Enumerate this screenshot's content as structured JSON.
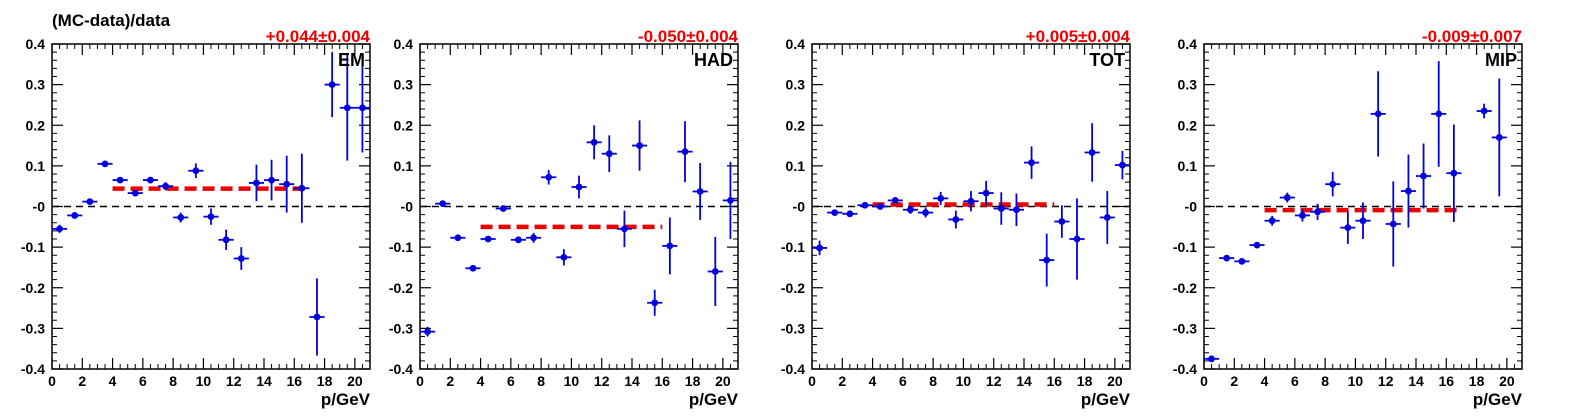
{
  "figure": {
    "ylabel": "(MC-data)/data",
    "xlabel": "p/GeV",
    "colors": {
      "points": "#0000dd",
      "fit": "#ee0000",
      "zero_line": "#000000",
      "axes": "#000000"
    }
  },
  "chart_data": [
    {
      "type": "scatter",
      "label": "EM",
      "fit_text": "+0.044±0.004",
      "fit": {
        "value": 0.044,
        "x_range": [
          4,
          17
        ]
      },
      "xlim": [
        0,
        21
      ],
      "ylim": [
        -0.4,
        0.4
      ],
      "xticks": [
        "0",
        "2",
        "4",
        "6",
        "8",
        "10",
        "12",
        "14",
        "16",
        "18",
        "20"
      ],
      "yticks": [
        "-0.4",
        "-0.3",
        "-0.2",
        "-0.1",
        "-0",
        "0.1",
        "0.2",
        "0.3",
        "0.4"
      ],
      "grid": false,
      "points": [
        {
          "x": 0.5,
          "y": -0.055,
          "err": 0.01
        },
        {
          "x": 1.5,
          "y": -0.022,
          "err": 0.006
        },
        {
          "x": 2.5,
          "y": 0.012,
          "err": 0.006
        },
        {
          "x": 3.5,
          "y": 0.105,
          "err": 0.005
        },
        {
          "x": 4.5,
          "y": 0.065,
          "err": 0.007
        },
        {
          "x": 5.5,
          "y": 0.033,
          "err": 0.008
        },
        {
          "x": 6.5,
          "y": 0.065,
          "err": 0.008
        },
        {
          "x": 7.5,
          "y": 0.05,
          "err": 0.01
        },
        {
          "x": 8.5,
          "y": -0.027,
          "err": 0.012
        },
        {
          "x": 9.5,
          "y": 0.088,
          "err": 0.018
        },
        {
          "x": 10.5,
          "y": -0.025,
          "err": 0.02
        },
        {
          "x": 11.5,
          "y": -0.082,
          "err": 0.025
        },
        {
          "x": 12.5,
          "y": -0.128,
          "err": 0.028
        },
        {
          "x": 13.5,
          "y": 0.058,
          "err": 0.045
        },
        {
          "x": 14.5,
          "y": 0.065,
          "err": 0.05
        },
        {
          "x": 15.5,
          "y": 0.055,
          "err": 0.07
        },
        {
          "x": 16.5,
          "y": 0.045,
          "err": 0.085
        },
        {
          "x": 17.5,
          "y": -0.272,
          "err": 0.095
        },
        {
          "x": 18.5,
          "y": 0.3,
          "err": 0.08
        },
        {
          "x": 19.5,
          "y": 0.243,
          "err": 0.13
        },
        {
          "x": 20.5,
          "y": 0.243,
          "err": 0.11
        }
      ]
    },
    {
      "type": "scatter",
      "label": "HAD",
      "fit_text": "-0.050±0.004",
      "fit": {
        "value": -0.05,
        "x_range": [
          4,
          16
        ]
      },
      "xlim": [
        0,
        21
      ],
      "ylim": [
        -0.4,
        0.4
      ],
      "xticks": [
        "0",
        "2",
        "4",
        "6",
        "8",
        "10",
        "12",
        "14",
        "16",
        "18",
        "20"
      ],
      "yticks": [
        "-0.4",
        "-0.3",
        "-0.2",
        "-0.1",
        "-0",
        "0.1",
        "0.2",
        "0.3",
        "0.4"
      ],
      "grid": false,
      "points": [
        {
          "x": 0.5,
          "y": -0.308,
          "err": 0.012
        },
        {
          "x": 1.5,
          "y": 0.007,
          "err": 0.005
        },
        {
          "x": 2.5,
          "y": -0.077,
          "err": 0.005
        },
        {
          "x": 3.5,
          "y": -0.152,
          "err": 0.005
        },
        {
          "x": 4.5,
          "y": -0.08,
          "err": 0.005
        },
        {
          "x": 5.5,
          "y": -0.005,
          "err": 0.006
        },
        {
          "x": 6.5,
          "y": -0.082,
          "err": 0.008
        },
        {
          "x": 7.5,
          "y": -0.077,
          "err": 0.012
        },
        {
          "x": 8.5,
          "y": 0.072,
          "err": 0.018
        },
        {
          "x": 9.5,
          "y": -0.125,
          "err": 0.02
        },
        {
          "x": 10.5,
          "y": 0.048,
          "err": 0.028
        },
        {
          "x": 11.5,
          "y": 0.158,
          "err": 0.042
        },
        {
          "x": 12.5,
          "y": 0.13,
          "err": 0.045
        },
        {
          "x": 13.5,
          "y": -0.055,
          "err": 0.045
        },
        {
          "x": 14.5,
          "y": 0.15,
          "err": 0.062
        },
        {
          "x": 15.5,
          "y": -0.237,
          "err": 0.032
        },
        {
          "x": 16.5,
          "y": -0.097,
          "err": 0.07
        },
        {
          "x": 17.5,
          "y": 0.135,
          "err": 0.075
        },
        {
          "x": 18.5,
          "y": 0.037,
          "err": 0.07
        },
        {
          "x": 19.5,
          "y": -0.16,
          "err": 0.085
        },
        {
          "x": 20.5,
          "y": 0.015,
          "err": 0.095
        }
      ]
    },
    {
      "type": "scatter",
      "label": "TOT",
      "fit_text": "+0.005±0.004",
      "fit": {
        "value": 0.005,
        "x_range": [
          4,
          16
        ]
      },
      "xlim": [
        0,
        21
      ],
      "ylim": [
        -0.4,
        0.4
      ],
      "xticks": [
        "0",
        "2",
        "4",
        "6",
        "8",
        "10",
        "12",
        "14",
        "16",
        "18",
        "20"
      ],
      "yticks": [
        "-0.4",
        "-0.3",
        "-0.2",
        "-0.1",
        "-0",
        "0.1",
        "0.2",
        "0.3",
        "0.4"
      ],
      "grid": false,
      "points": [
        {
          "x": 0.5,
          "y": -0.102,
          "err": 0.018
        },
        {
          "x": 1.5,
          "y": -0.015,
          "err": 0.005
        },
        {
          "x": 2.5,
          "y": -0.018,
          "err": 0.005
        },
        {
          "x": 3.5,
          "y": 0.003,
          "err": 0.004
        },
        {
          "x": 4.5,
          "y": 0.0,
          "err": 0.005
        },
        {
          "x": 5.5,
          "y": 0.015,
          "err": 0.006
        },
        {
          "x": 6.5,
          "y": -0.008,
          "err": 0.01
        },
        {
          "x": 7.5,
          "y": -0.015,
          "err": 0.012
        },
        {
          "x": 8.5,
          "y": 0.02,
          "err": 0.016
        },
        {
          "x": 9.5,
          "y": -0.032,
          "err": 0.022
        },
        {
          "x": 10.5,
          "y": 0.013,
          "err": 0.025
        },
        {
          "x": 11.5,
          "y": 0.033,
          "err": 0.03
        },
        {
          "x": 12.5,
          "y": -0.005,
          "err": 0.04
        },
        {
          "x": 13.5,
          "y": -0.008,
          "err": 0.04
        },
        {
          "x": 14.5,
          "y": 0.108,
          "err": 0.04
        },
        {
          "x": 15.5,
          "y": -0.132,
          "err": 0.065
        },
        {
          "x": 16.5,
          "y": -0.037,
          "err": 0.04
        },
        {
          "x": 17.5,
          "y": -0.08,
          "err": 0.1
        },
        {
          "x": 18.5,
          "y": 0.133,
          "err": 0.072
        },
        {
          "x": 19.5,
          "y": -0.027,
          "err": 0.065
        },
        {
          "x": 20.5,
          "y": 0.102,
          "err": 0.035
        }
      ]
    },
    {
      "type": "scatter",
      "label": "MIP",
      "fit_text": "-0.009±0.007",
      "fit": {
        "value": -0.009,
        "x_range": [
          4,
          17
        ]
      },
      "xlim": [
        0,
        21
      ],
      "ylim": [
        -0.4,
        0.4
      ],
      "xticks": [
        "0",
        "2",
        "4",
        "6",
        "8",
        "10",
        "12",
        "14",
        "16",
        "18",
        "20"
      ],
      "yticks": [
        "-0.4",
        "-0.3",
        "-0.2",
        "-0.1",
        "-0",
        "0.1",
        "0.2",
        "0.3",
        "0.4"
      ],
      "grid": false,
      "points": [
        {
          "x": 0.5,
          "y": -0.375,
          "err": 0.008
        },
        {
          "x": 1.5,
          "y": -0.127,
          "err": 0.004
        },
        {
          "x": 2.5,
          "y": -0.135,
          "err": 0.004
        },
        {
          "x": 3.5,
          "y": -0.095,
          "err": 0.006
        },
        {
          "x": 4.5,
          "y": -0.035,
          "err": 0.012
        },
        {
          "x": 5.5,
          "y": 0.022,
          "err": 0.012
        },
        {
          "x": 6.5,
          "y": -0.022,
          "err": 0.015
        },
        {
          "x": 7.5,
          "y": -0.013,
          "err": 0.02
        },
        {
          "x": 8.5,
          "y": 0.055,
          "err": 0.03
        },
        {
          "x": 9.5,
          "y": -0.052,
          "err": 0.04
        },
        {
          "x": 10.5,
          "y": -0.035,
          "err": 0.045
        },
        {
          "x": 11.5,
          "y": 0.228,
          "err": 0.105
        },
        {
          "x": 12.5,
          "y": -0.043,
          "err": 0.105
        },
        {
          "x": 13.5,
          "y": 0.038,
          "err": 0.09
        },
        {
          "x": 14.5,
          "y": 0.075,
          "err": 0.08
        },
        {
          "x": 15.5,
          "y": 0.228,
          "err": 0.13
        },
        {
          "x": 16.5,
          "y": 0.082,
          "err": 0.12
        },
        {
          "x": 18.5,
          "y": 0.235,
          "err": 0.018
        },
        {
          "x": 19.5,
          "y": 0.17,
          "err": 0.145
        }
      ]
    }
  ]
}
